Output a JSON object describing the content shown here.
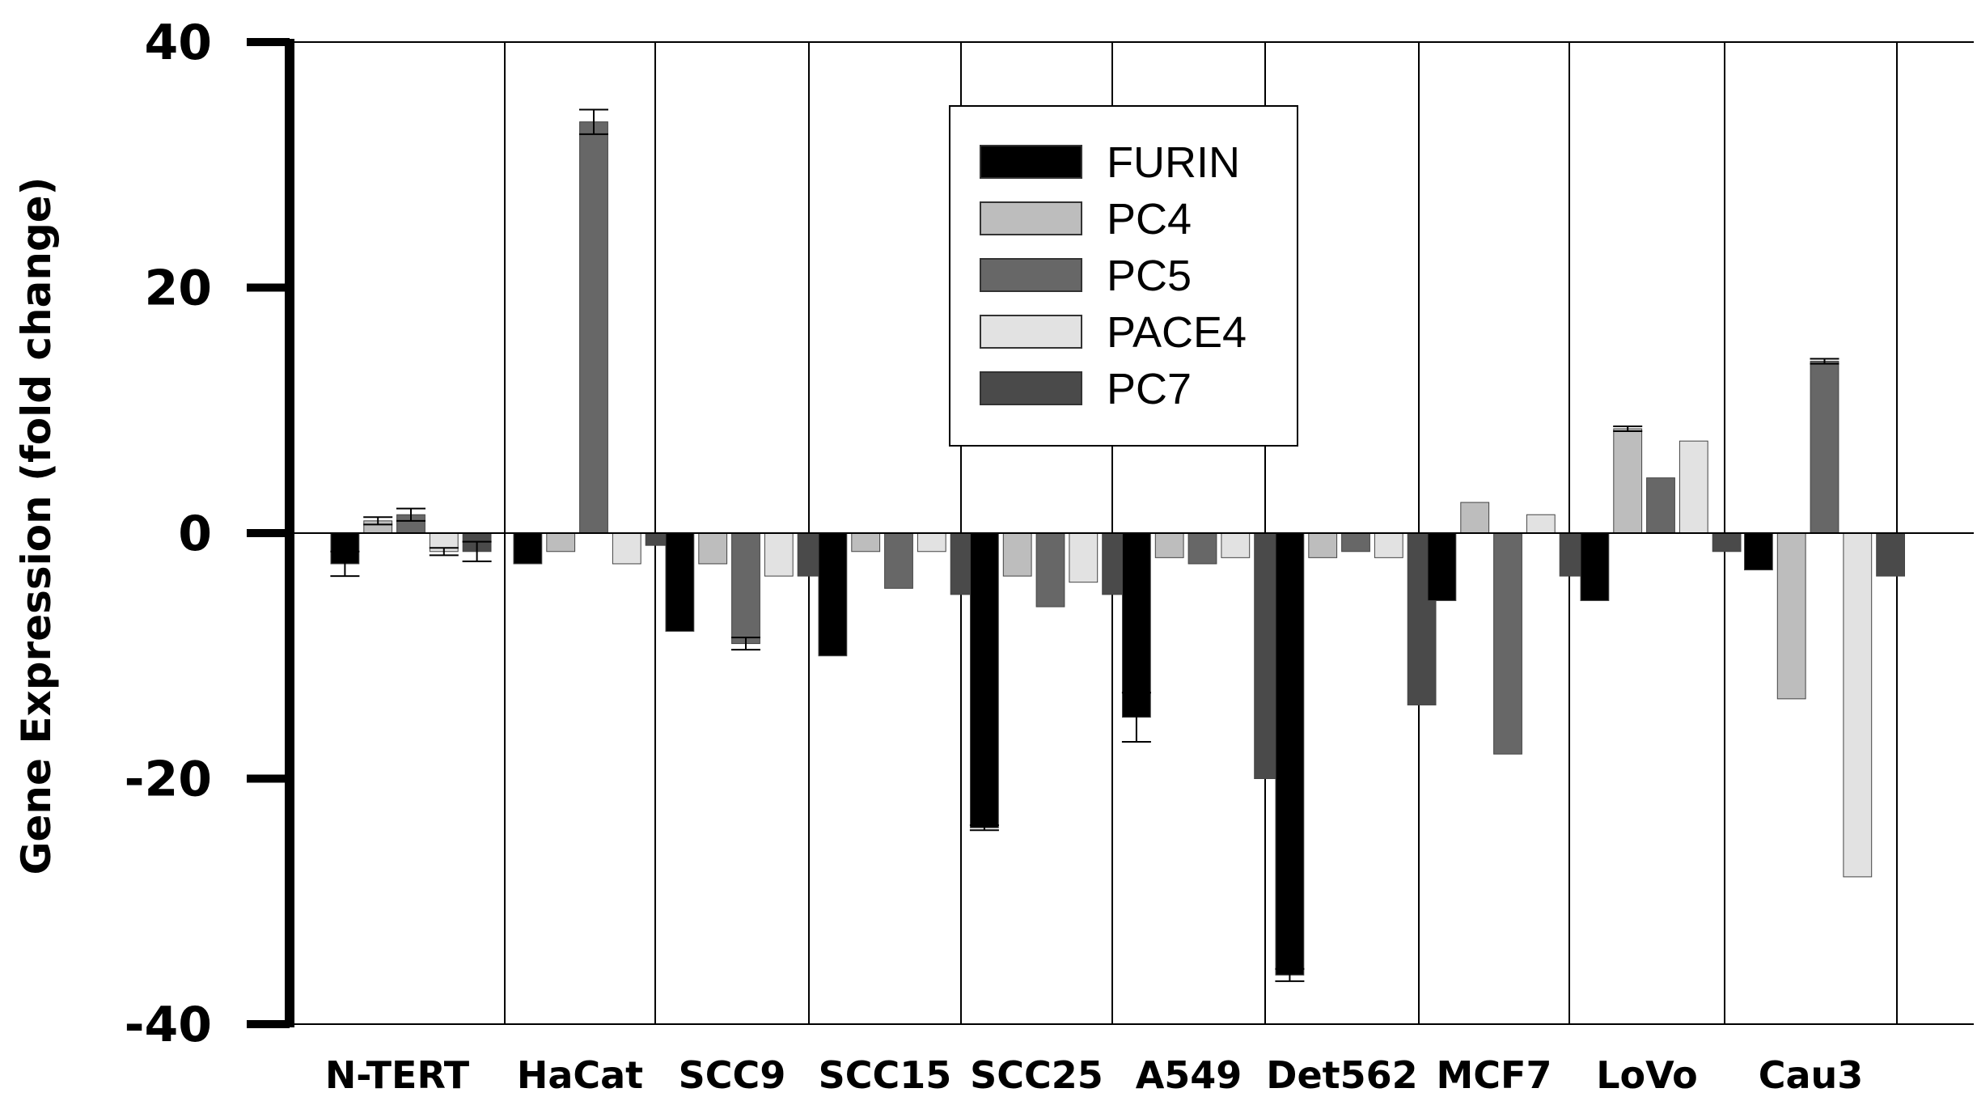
{
  "chart_data": {
    "type": "bar",
    "ylabel": "Gene Expression (fold change)",
    "xlabel": "",
    "ylim": [
      -40,
      40
    ],
    "yticks": [
      40,
      20,
      0,
      -20,
      -40
    ],
    "grid": "vertical separators between categories, horizontal line at 0 and 40",
    "legend_position": "top-center",
    "categories": [
      "N-TERT",
      "HaCat",
      "SCC9",
      "SCC15",
      "SCC25",
      "A549",
      "Det562",
      "MCF7",
      "LoVo",
      "Cau3"
    ],
    "series": [
      {
        "name": "FURIN",
        "color": "#000000",
        "values": [
          -2.5,
          -2.5,
          -8,
          -10,
          -24,
          -15,
          -36,
          -5.5,
          -5.5,
          -3
        ],
        "errors": [
          1,
          0,
          0,
          0,
          0.2,
          2,
          0.5,
          0,
          0,
          0
        ]
      },
      {
        "name": "PC4",
        "color": "#bdbdbd",
        "values": [
          1,
          -1.5,
          -2.5,
          -1.5,
          -3.5,
          -2,
          -2,
          2.5,
          8.5,
          -13.5
        ],
        "errors": [
          0.3,
          0,
          0,
          0,
          0,
          0,
          0,
          0,
          0.2,
          0
        ]
      },
      {
        "name": "PC5",
        "color": "#676767",
        "values": [
          1.5,
          33.5,
          -9,
          -4.5,
          -6,
          -2.5,
          -1.5,
          -18,
          4.5,
          14
        ],
        "errors": [
          0.5,
          1,
          0.5,
          0,
          0,
          0,
          0,
          0,
          0,
          0.2
        ]
      },
      {
        "name": "PACE4",
        "color": "#e2e2e2",
        "values": [
          -1.5,
          -2.5,
          -3.5,
          -1.5,
          -4,
          -2,
          -2,
          1.5,
          7.5,
          -28
        ],
        "errors": [
          0.3,
          0,
          0,
          0,
          0,
          0,
          0,
          0,
          0,
          0
        ]
      },
      {
        "name": "PC7",
        "color": "#4a4a4a",
        "values": [
          -1.5,
          -1,
          -3.5,
          -5,
          -5,
          -20,
          -14,
          -3.5,
          -1.5,
          -3.5
        ],
        "errors": [
          0.8,
          0,
          0,
          0,
          0,
          0,
          0,
          0,
          0,
          0
        ]
      }
    ]
  }
}
